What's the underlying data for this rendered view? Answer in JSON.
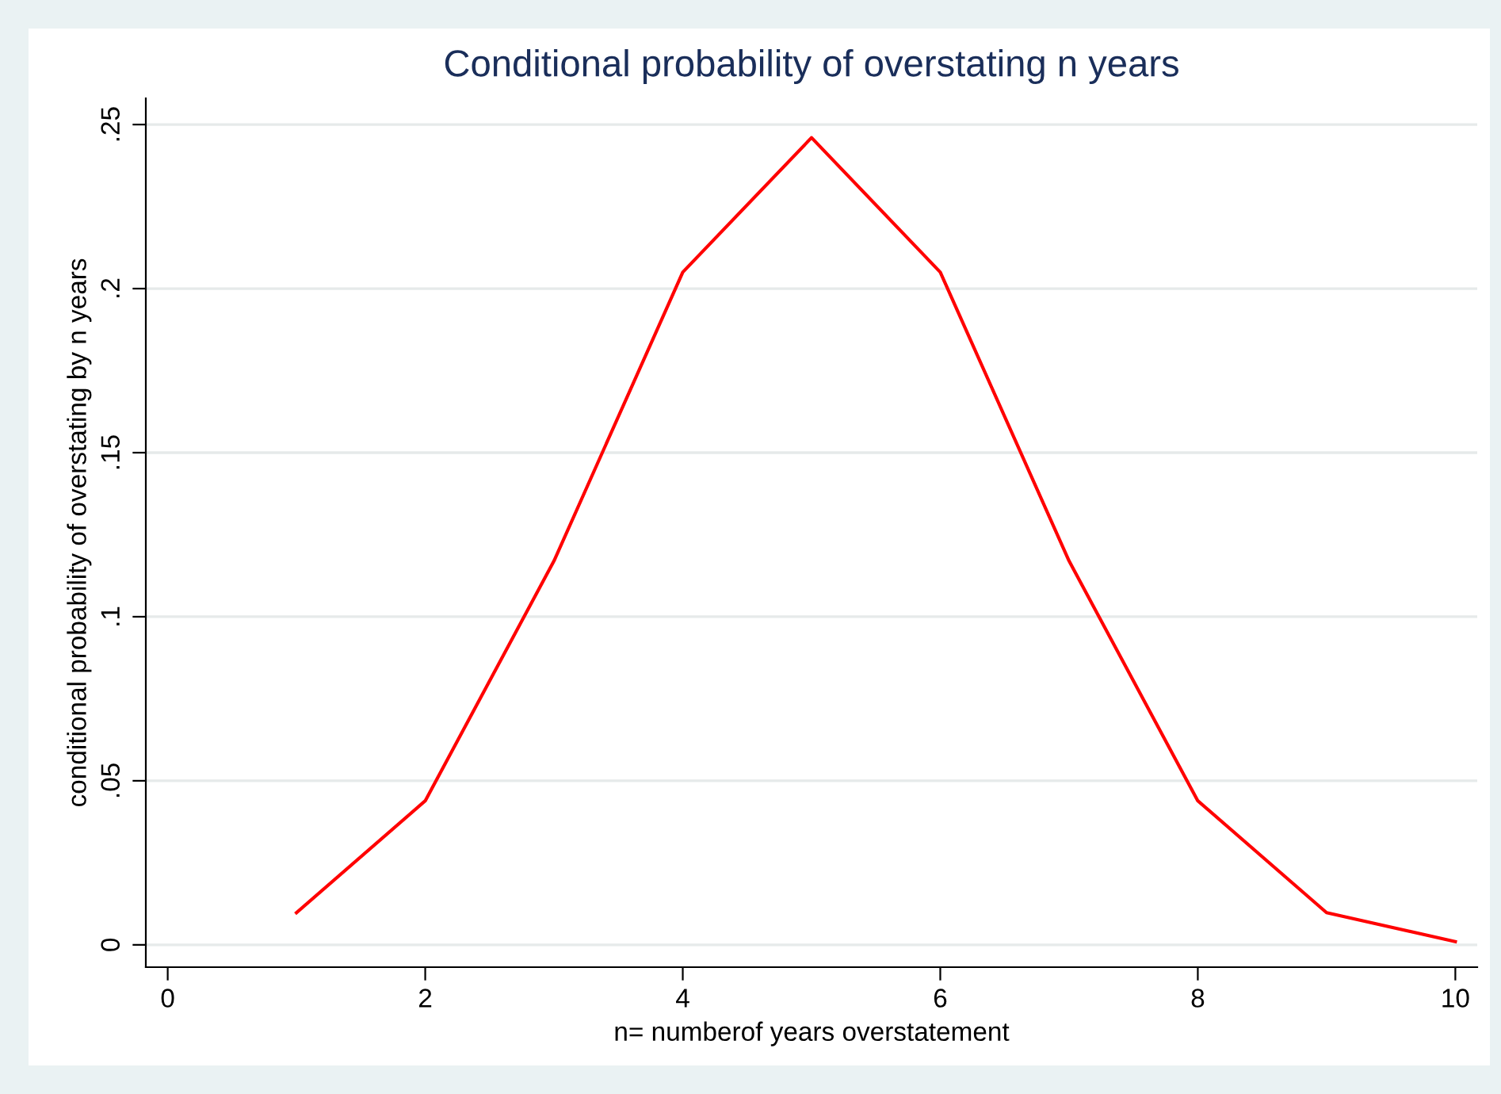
{
  "chart_data": {
    "type": "line",
    "title": "Conditional probability of overstating n years",
    "xlabel": "n= numberof years overstatement",
    "ylabel": "conditional probability of overstating by n years",
    "x": [
      1,
      2,
      3,
      4,
      5,
      6,
      7,
      8,
      9,
      10
    ],
    "series": [
      {
        "color": "#ff0000",
        "values": [
          0.0098,
          0.0439,
          0.117,
          0.205,
          0.246,
          0.205,
          0.117,
          0.0439,
          0.0098,
          0.001
        ]
      }
    ],
    "xlim": [
      -0.17,
      10.17
    ],
    "xticks": [
      0,
      2,
      4,
      6,
      8,
      10
    ],
    "ylim": [
      -0.0068,
      0.258
    ],
    "yticks": [
      {
        "value": 0,
        "label": "0"
      },
      {
        "value": 0.05,
        "label": ".05"
      },
      {
        "value": 0.1,
        "label": ".1"
      },
      {
        "value": 0.15,
        "label": ".15"
      },
      {
        "value": 0.2,
        "label": ".2"
      },
      {
        "value": 0.25,
        "label": ".25"
      }
    ],
    "grid": "y",
    "marker": "none",
    "line_style": "solid"
  }
}
